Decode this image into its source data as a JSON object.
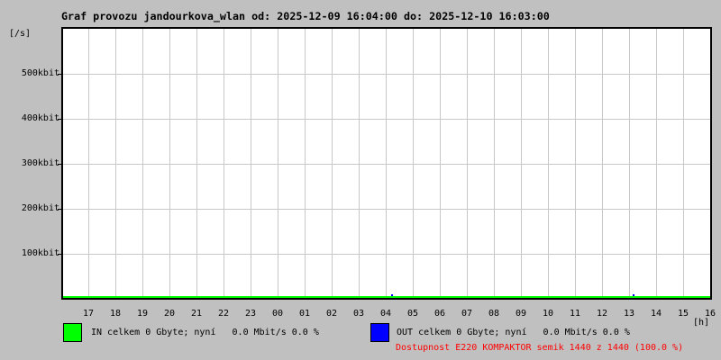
{
  "title": "Graf provozu jandourkova_wlan od: 2025-12-09 16:04:00 do: 2025-12-10 16:03:00",
  "y_unit": "[/s]",
  "x_unit": "[h]",
  "chart_data": {
    "type": "line",
    "title": "Graf provozu jandourkova_wlan od: 2025-12-09 16:04:00 do: 2025-12-10 16:03:00",
    "x_tick_labels": [
      "17",
      "18",
      "19",
      "20",
      "21",
      "22",
      "23",
      "00",
      "01",
      "02",
      "03",
      "04",
      "05",
      "06",
      "07",
      "08",
      "09",
      "10",
      "11",
      "12",
      "13",
      "14",
      "15",
      "16"
    ],
    "y_tick_labels": [
      "100kbit",
      "200kbit",
      "300kbit",
      "400kbit",
      "500kbit"
    ],
    "y_tick_values_kbit": [
      100,
      200,
      300,
      400,
      500
    ],
    "ylim_kbit": [
      0,
      600
    ],
    "grid": true,
    "series": [
      {
        "name": "IN",
        "color": "#00ff00",
        "values_kbit": [
          0,
          0,
          0,
          0,
          0,
          0,
          0,
          0,
          0,
          0,
          0,
          0,
          0,
          0,
          0,
          0,
          0,
          0,
          0,
          0,
          0,
          0,
          0,
          0
        ]
      },
      {
        "name": "OUT",
        "color": "#0000ff",
        "values_kbit": [
          0,
          0,
          0,
          0,
          0,
          0,
          0,
          0,
          0,
          0,
          0,
          0,
          0,
          0,
          0,
          0,
          0,
          0,
          0,
          0,
          0,
          0,
          0,
          0
        ]
      }
    ],
    "out_blip_hours_from_start": [
      12.2,
      21.13
    ]
  },
  "legend": {
    "in": {
      "swatch_color": "#00ff00",
      "label": "IN celkem 0 Gbyte; nyní   0.0 Mbit/s 0.0 %"
    },
    "out": {
      "swatch_color": "#0000ff",
      "label": "OUT celkem 0 Gbyte; nyní   0.0 Mbit/s 0.0 %"
    }
  },
  "availability": {
    "text": "Dostupnost E220 KOMPAKTOR semik 1440 z 1440 (100.0 %)",
    "color": "#ff0000"
  },
  "colors": {
    "background": "#c0c0c0",
    "plot_background": "#ffffff",
    "grid": "#c8c8c8",
    "frame": "#000000"
  }
}
